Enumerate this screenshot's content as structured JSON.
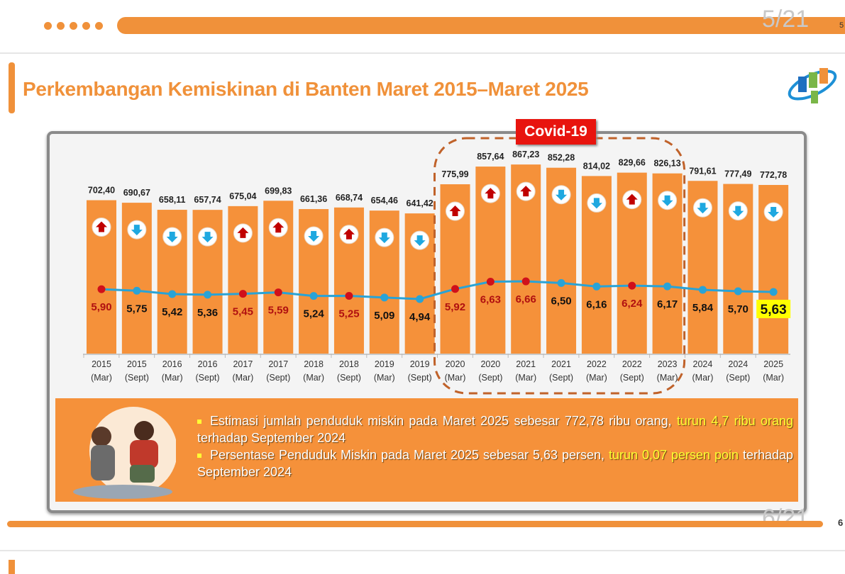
{
  "slide_header": {
    "page_top": "5/21",
    "page_top_small": "5",
    "page_bottom": "6/21",
    "page_bottom_small": "6"
  },
  "title": "Perkembangan Kemiskinan di Banten Maret 2015–Maret 2025",
  "logo": "bps-logo",
  "covid_label": "Covid-19",
  "chart_data": {
    "type": "bar",
    "categories": [
      [
        "2015",
        "(Mar)"
      ],
      [
        "2015",
        "(Sept)"
      ],
      [
        "2016",
        "(Mar)"
      ],
      [
        "2016",
        "(Sept)"
      ],
      [
        "2017",
        "(Mar)"
      ],
      [
        "2017",
        "(Sept)"
      ],
      [
        "2018",
        "(Mar)"
      ],
      [
        "2018",
        "(Sept)"
      ],
      [
        "2019",
        "(Mar)"
      ],
      [
        "2019",
        "(Sept)"
      ],
      [
        "2020",
        "(Mar)"
      ],
      [
        "2020",
        "(Sept)"
      ],
      [
        "2021",
        "(Mar)"
      ],
      [
        "2021",
        "(Sept)"
      ],
      [
        "2022",
        "(Mar)"
      ],
      [
        "2022",
        "(Sept)"
      ],
      [
        "2023",
        "(Mar)"
      ],
      [
        "2024",
        "(Mar)"
      ],
      [
        "2024",
        "(Sept)"
      ],
      [
        "2025",
        "(Mar)"
      ]
    ],
    "series": [
      {
        "type": "bar",
        "values": [
          702.4,
          690.67,
          658.11,
          657.74,
          675.04,
          699.83,
          661.36,
          668.74,
          654.46,
          641.42,
          775.99,
          857.64,
          867.23,
          852.28,
          814.02,
          829.66,
          826.13,
          791.61,
          777.49,
          772.78
        ],
        "labels": [
          "702,40",
          "690,67",
          "658,11",
          "657,74",
          "675,04",
          "699,83",
          "661,36",
          "668,74",
          "654,46",
          "641,42",
          "775,99",
          "857,64",
          "867,23",
          "852,28",
          "814,02",
          "829,66",
          "826,13",
          "791,61",
          "777,49",
          "772,78"
        ],
        "color": "#f5913a"
      },
      {
        "type": "line",
        "values": [
          5.9,
          5.75,
          5.42,
          5.36,
          5.45,
          5.59,
          5.24,
          5.25,
          5.09,
          4.94,
          5.92,
          6.63,
          6.66,
          6.5,
          6.16,
          6.24,
          6.17,
          5.84,
          5.7,
          5.63
        ],
        "labels": [
          "5,90",
          "5,75",
          "5,42",
          "5,36",
          "5,45",
          "5,59",
          "5,24",
          "5,25",
          "5,09",
          "4,94",
          "5,92",
          "6,63",
          "6,66",
          "6,50",
          "6,16",
          "6,24",
          "6,17",
          "5,84",
          "5,70",
          "5,63"
        ],
        "color": "#29a3d6"
      }
    ],
    "bar_trend": [
      "up",
      "down",
      "down",
      "down",
      "up",
      "up",
      "down",
      "up",
      "down",
      "down",
      "up",
      "up",
      "up",
      "down",
      "down",
      "up",
      "down",
      "down",
      "down",
      "down"
    ],
    "line_trend": [
      "up",
      "down",
      "down",
      "down",
      "up",
      "up",
      "down",
      "up",
      "down",
      "down",
      "up",
      "up",
      "up",
      "down",
      "down",
      "up",
      "down",
      "down",
      "down",
      "down"
    ],
    "highlighted_range": {
      "label": "Covid-19",
      "from": "2020 (Mar)",
      "to": "2023 (Mar)"
    },
    "highlighted_value": "5,63",
    "colors": {
      "up": "#c00000",
      "down": "#1fa8e0",
      "highlight": "#ffff00"
    }
  },
  "notes": [
    {
      "text": "Estimasi jumlah penduduk miskin pada Maret 2025 sebesar 772,78 ribu orang, ",
      "highlight": "turun 4,7 ribu orang",
      "tail": " terhadap September 2024"
    },
    {
      "text": "Persentase Penduduk Miskin pada Maret 2025 sebesar 5,63 persen, ",
      "highlight": "turun 0,07 persen poin",
      "tail": " terhadap September 2024"
    }
  ]
}
